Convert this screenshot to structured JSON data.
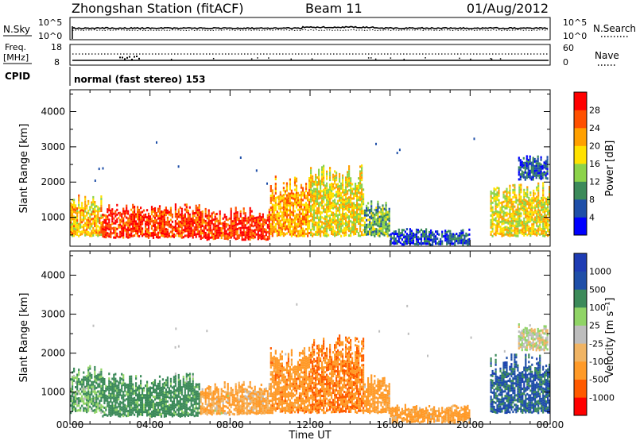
{
  "header": {
    "title": "Zhongshan Station (fitACF)",
    "beam": "Beam 11",
    "date": "01/Aug/2012"
  },
  "noise_panel": {
    "left_label": "N.Sky",
    "right_label": "N.Search",
    "left_ticks": [
      "10^5",
      "10^0"
    ],
    "right_ticks": [
      "10^5",
      "10^0"
    ]
  },
  "freq_panel": {
    "left_label_line1": "Freq.",
    "left_label_line2": "[MHz]",
    "right_label": "Nave",
    "left_ticks": [
      "18",
      "8"
    ],
    "right_ticks": [
      "60",
      "0"
    ]
  },
  "cpid": {
    "label": "CPID",
    "text": "normal (fast stereo) 153"
  },
  "time_axis": {
    "title": "Time UT",
    "ticks": [
      "00:00",
      "04:00",
      "08:00",
      "12:00",
      "16:00",
      "20:00",
      "00:00"
    ]
  },
  "colors": {
    "power": [
      "#0000ff",
      "#1f4fa8",
      "#3c8a5a",
      "#8cd34a",
      "#ffe100",
      "#ffa000",
      "#ff5000",
      "#ff0000"
    ],
    "velocity": [
      "#ff0000",
      "#ff5a00",
      "#ff9a28",
      "#f0b464",
      "#bdbdbd",
      "#90d466",
      "#3c8a5a",
      "#1f4fa8",
      "#1e3cb4"
    ]
  },
  "chart_data": [
    {
      "type": "heatmap",
      "title": "",
      "xlabel": "",
      "ylabel": "Slant Range [km]",
      "x_ticks": [
        "00:00",
        "04:00",
        "08:00",
        "12:00",
        "16:00",
        "20:00",
        "00:00"
      ],
      "y_ticks": [
        "1000",
        "2000",
        "3000",
        "4000"
      ],
      "ylim": [
        180,
        4620
      ],
      "colorbar": {
        "label": "Power [dB]",
        "ticks": [
          "4",
          "8",
          "12",
          "16",
          "20",
          "24",
          "28"
        ],
        "range": [
          0,
          32
        ]
      },
      "regions": [
        {
          "t": [
            0.0,
            1.6
          ],
          "r": [
            500,
            1700
          ],
          "v": 20
        },
        {
          "t": [
            1.6,
            6.5
          ],
          "r": [
            450,
            1400
          ],
          "v": 28
        },
        {
          "t": [
            6.5,
            10.0
          ],
          "r": [
            400,
            1300
          ],
          "v": 28
        },
        {
          "t": [
            10.0,
            12.0
          ],
          "r": [
            500,
            2200
          ],
          "v": 22
        },
        {
          "t": [
            12.0,
            14.7
          ],
          "r": [
            500,
            2500
          ],
          "v": 18
        },
        {
          "t": [
            14.7,
            16.0
          ],
          "r": [
            500,
            1500
          ],
          "v": 12
        },
        {
          "t": [
            16.0,
            20.0
          ],
          "r": [
            250,
            700
          ],
          "v": 6
        },
        {
          "t": [
            21.0,
            24.0
          ],
          "r": [
            500,
            2000
          ],
          "v": 18
        },
        {
          "t": [
            22.4,
            23.9
          ],
          "r": [
            2100,
            2800
          ],
          "v": 6
        }
      ]
    },
    {
      "type": "heatmap",
      "title": "",
      "xlabel": "Time UT",
      "ylabel": "Slant Range [km]",
      "x_ticks": [
        "00:00",
        "04:00",
        "08:00",
        "12:00",
        "16:00",
        "20:00",
        "00:00"
      ],
      "y_ticks": [
        "1000",
        "2000",
        "3000",
        "4000"
      ],
      "ylim": [
        180,
        4620
      ],
      "colorbar": {
        "label": "Velocity [m s⁻¹]",
        "ticks": [
          "1000",
          "500",
          "100",
          "25",
          "-25",
          "-100",
          "-500",
          "-1000"
        ]
      },
      "regions": [
        {
          "t": [
            0.0,
            1.6
          ],
          "r": [
            500,
            1700
          ],
          "v": 100
        },
        {
          "t": [
            1.6,
            6.5
          ],
          "r": [
            400,
            1500
          ],
          "v": 200
        },
        {
          "t": [
            6.5,
            10.0
          ],
          "r": [
            450,
            1300
          ],
          "v": -100
        },
        {
          "t": [
            10.0,
            12.0
          ],
          "r": [
            500,
            2200
          ],
          "v": -300
        },
        {
          "t": [
            12.0,
            14.7
          ],
          "r": [
            500,
            2500
          ],
          "v": -400
        },
        {
          "t": [
            14.7,
            16.0
          ],
          "r": [
            500,
            1500
          ],
          "v": -200
        },
        {
          "t": [
            16.0,
            20.0
          ],
          "r": [
            250,
            700
          ],
          "v": -150
        },
        {
          "t": [
            21.0,
            24.0
          ],
          "r": [
            500,
            2000
          ],
          "v": 600
        },
        {
          "t": [
            22.4,
            23.9
          ],
          "r": [
            2100,
            2800
          ],
          "v": 0
        }
      ]
    }
  ]
}
